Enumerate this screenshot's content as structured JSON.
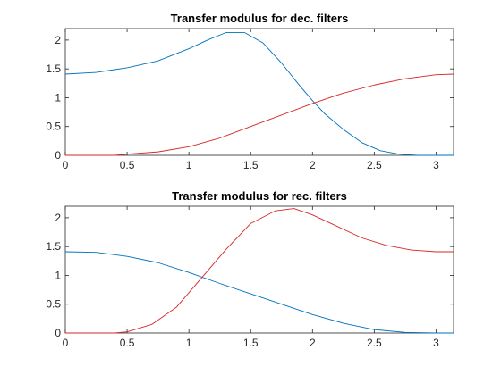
{
  "chart_data": [
    {
      "type": "line",
      "title": "Transfer modulus for dec. filters",
      "xlabel": "",
      "ylabel": "",
      "xlim": [
        0,
        3.1416
      ],
      "ylim": [
        0,
        2.2
      ],
      "xticks": [
        "0",
        "0.5",
        "1",
        "1.5",
        "2",
        "2.5",
        "3"
      ],
      "yticks": [
        "0",
        "0.5",
        "1",
        "1.5",
        "2"
      ],
      "grid": false,
      "series": [
        {
          "color": "#0072bd",
          "x": [
            0,
            0.25,
            0.5,
            0.75,
            1.0,
            1.15,
            1.3,
            1.45,
            1.6,
            1.75,
            1.9,
            2.0,
            2.1,
            2.25,
            2.4,
            2.55,
            2.7,
            2.85,
            3.0,
            3.1416
          ],
          "y": [
            1.41,
            1.44,
            1.52,
            1.64,
            1.85,
            2.0,
            2.13,
            2.13,
            1.95,
            1.6,
            1.2,
            0.95,
            0.72,
            0.45,
            0.22,
            0.08,
            0.02,
            0.0,
            0.0,
            0.0
          ]
        },
        {
          "color": "#d62728",
          "x": [
            0,
            0.25,
            0.4,
            0.5,
            0.75,
            1.0,
            1.25,
            1.5,
            1.75,
            2.0,
            2.25,
            2.5,
            2.75,
            3.0,
            3.1416
          ],
          "y": [
            0.0,
            0.0,
            0.0,
            0.02,
            0.06,
            0.15,
            0.3,
            0.5,
            0.7,
            0.9,
            1.08,
            1.22,
            1.33,
            1.4,
            1.41
          ]
        }
      ]
    },
    {
      "type": "line",
      "title": "Transfer modulus for rec. filters",
      "xlabel": "",
      "ylabel": "",
      "xlim": [
        0,
        3.1416
      ],
      "ylim": [
        0,
        2.2
      ],
      "xticks": [
        "0",
        "0.5",
        "1",
        "1.5",
        "2",
        "2.5",
        "3"
      ],
      "yticks": [
        "0",
        "0.5",
        "1",
        "1.5",
        "2"
      ],
      "grid": false,
      "series": [
        {
          "color": "#0072bd",
          "x": [
            0,
            0.25,
            0.5,
            0.75,
            1.0,
            1.25,
            1.5,
            1.75,
            2.0,
            2.25,
            2.5,
            2.75,
            3.0,
            3.1416
          ],
          "y": [
            1.41,
            1.4,
            1.33,
            1.22,
            1.05,
            0.86,
            0.68,
            0.5,
            0.32,
            0.17,
            0.06,
            0.01,
            0.0,
            0.0
          ]
        },
        {
          "color": "#d62728",
          "x": [
            0,
            0.25,
            0.4,
            0.5,
            0.7,
            0.9,
            1.1,
            1.3,
            1.5,
            1.7,
            1.85,
            2.0,
            2.2,
            2.4,
            2.6,
            2.8,
            3.0,
            3.1416
          ],
          "y": [
            0.0,
            0.0,
            0.0,
            0.02,
            0.15,
            0.45,
            0.95,
            1.45,
            1.9,
            2.12,
            2.16,
            2.05,
            1.85,
            1.65,
            1.52,
            1.44,
            1.41,
            1.41
          ]
        }
      ]
    }
  ]
}
